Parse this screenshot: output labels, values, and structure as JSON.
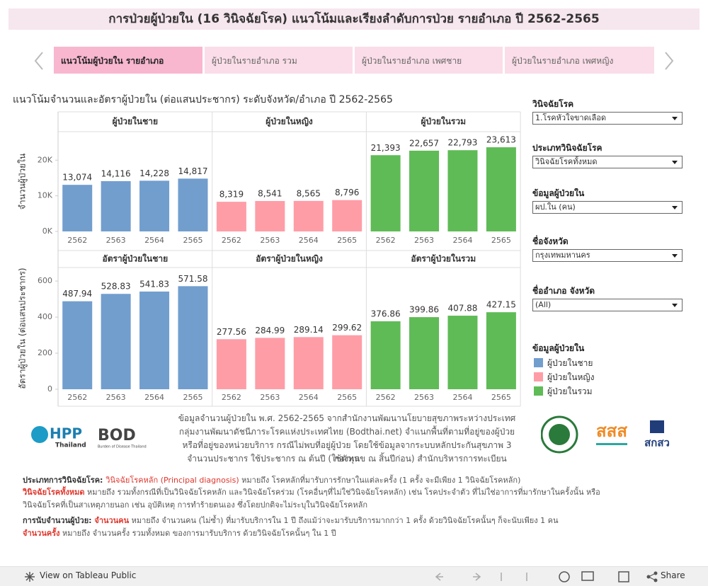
{
  "header": {
    "title": "การป่วยผู้ป่วยใน (16 วินิจฉัยโรค) แนวโน้มและเรียงลำดับการป่วย รายอำเภอ ปี 2562-2565"
  },
  "tabs": [
    "แนวโน้มผู้ป่วยใน รายอำเภอ",
    "ผู้ป่วยในรายอำเภอ รวม",
    "ผู้ป่วยในรายอำเภอ เพศชาย",
    "ผู้ป่วยในรายอำเภอ เพศหญิง"
  ],
  "subtitle": "แนวโน้มจำนวนและอัตราผู้ป่วยใน (ต่อแสนประชากร) ระดับจังหวัด/อำเภอ ปี 2562-2565",
  "chart_data": [
    {
      "type": "bar",
      "y_label": "จำนวนผู้ป่วยใน",
      "categories": [
        "2562",
        "2563",
        "2564",
        "2565"
      ],
      "ylim": [
        0,
        28000
      ],
      "yticks": [
        {
          "value": 0,
          "label": "0K"
        },
        {
          "value": 10000,
          "label": "10K"
        },
        {
          "value": 20000,
          "label": "20K"
        }
      ],
      "series": [
        {
          "name": "ผู้ป่วยในชาย",
          "color": "#729ece",
          "values": [
            13074,
            14116,
            14228,
            14817
          ],
          "value_labels": [
            "13,074",
            "14,116",
            "14,228",
            "14,817"
          ]
        },
        {
          "name": "ผู้ป่วยในหญิง",
          "color": "#ff9da7",
          "values": [
            8319,
            8541,
            8565,
            8796
          ],
          "value_labels": [
            "8,319",
            "8,541",
            "8,565",
            "8,796"
          ]
        },
        {
          "name": "ผู้ป่วยในรวม",
          "color": "#5fbb56",
          "values": [
            21393,
            22657,
            22793,
            23613
          ],
          "value_labels": [
            "21,393",
            "22,657",
            "22,793",
            "23,613"
          ]
        }
      ]
    },
    {
      "type": "bar",
      "y_label": "อัตราผู้ป่วยใน (ต่อแสนประชากร)",
      "categories": [
        "2562",
        "2563",
        "2564",
        "2565"
      ],
      "ylim": [
        0,
        675
      ],
      "yticks": [
        0,
        200,
        400,
        600
      ],
      "series": [
        {
          "name": "อัตราผู้ป่วยในชาย",
          "color": "#729ece",
          "values": [
            487.94,
            528.83,
            541.83,
            571.58
          ]
        },
        {
          "name": "อัตราผู้ป่วยในหญิง",
          "color": "#ff9da7",
          "values": [
            277.56,
            284.99,
            289.14,
            299.62
          ]
        },
        {
          "name": "อัตราผู้ป่วยในรวม",
          "color": "#5fbb56",
          "values": [
            376.86,
            399.86,
            407.88,
            427.15
          ]
        }
      ]
    }
  ],
  "filters": [
    {
      "label": "วินิจฉัยโรค",
      "value": "1.โรคหัวใจขาดเลือด"
    },
    {
      "label": "ประเภทวินิจฉัยโรค",
      "value": "วินิจฉัยโรคทั้งหมด"
    },
    {
      "label": "ข้อมูลผู้ป่วยใน",
      "value": "ผป.ใน (คน)"
    },
    {
      "label": "ชื่อจังหวัด",
      "value": "กรุงเทพมหานคร"
    },
    {
      "label": "ชื่ออำเภอ จังหวัด",
      "value": "(All)"
    }
  ],
  "legend": {
    "title": "ข้อมูลผู้ป่วยใน"
  },
  "source": [
    "ข้อมูลจำนวนผู้ป่วยใน พ.ศ. 2562-2565 จากสำนักงานพัฒนานโยบายสุขภาพระหว่างประเทศ",
    "กลุ่มงานพัฒนาดัชนีภาระโรคแห่งประเทศไทย (Bodthai.net) จำแนกพื้นที่ตามที่อยู่ของผู้ป่วย",
    "หรือที่อยู่ของหน่วยบริการ กรณีไม่พบที่อยู่ผู้ป่วย โดยใช้ข้อมูลจากระบบหลักประกันสุขภาพ 3 กองทุน",
    "จำนวนประชากร ใช้ประชากร ณ ต้นปี (ใช้ตัวเลข ณ สิ้นปีก่อน) สำนักบริหารการทะเบียน"
  ],
  "logos": {
    "ihpp": "HPP",
    "ihpp_sub": "Thailand",
    "bod": "BOD",
    "bod_sub": "Burden of Disease Thailand",
    "thaihealth": "สสส",
    "tsri": "สกสว"
  },
  "notes": [
    [
      {
        "text": "ประเภทการวินิจฉัยโรค: ",
        "style": "label"
      },
      {
        "text": "วินิจฉัยโรคหลัก (Principal diagnosis)",
        "style": "red"
      },
      {
        "text": " หมายถึง โรคหลักที่มารับการรักษาในแต่ละครั้ง (1 ครั้ง จะมีเพียง 1 วินิจฉัยโรคหลัก)"
      }
    ],
    [
      {
        "text": "วินิจฉัยโรคทั้งหมด",
        "style": "red-bold"
      },
      {
        "text": " หมายถึง รวมทั้งกรณีที่เป็นวินิจฉัยโรคหลัก และวินิจฉัยโรคร่วม (โรคอื่นๆที่ไม่ใช่วินิจฉัยโรคหลัก) เช่น โรคประจำตัว ที่ไม่ใช่อาการที่มารักษาในครั้งนั้น หรือ"
      }
    ],
    [
      {
        "text": "วินิจฉัยโรคที่เป็นสาเหตุภายนอก เช่น อุบัติเหตุ การทำร้ายตนเอง ซึ่งโดยปกติจะไม่ระบุในวินิจฉัยโรคหลัก"
      }
    ],
    [
      {
        "text": "การนับจำนวนผู้ป่วย: ",
        "style": "label"
      },
      {
        "text": "จำนวนคน",
        "style": "red-bold"
      },
      {
        "text": " หมายถึง จำนวนคน (ไม่ซ้ำ) ที่มารับบริการใน 1 ปี ถึงแม้ว่าจะมารับบริการมากกว่า 1 ครั้ง ด้วยวินิจฉัยโรคนั้นๆ ก็จะนับเพียง 1 คน"
      }
    ],
    [
      {
        "text": "จำนวนครั้ง",
        "style": "red-bold"
      },
      {
        "text": " หมายถึง จำนวนครั้ง รวมทั้งหมด ของการมารับบริการ ด้วยวินิจฉัยโรคนั้นๆ ใน 1 ปี"
      }
    ]
  ],
  "toolbar": {
    "view": "View on Tableau Public",
    "share": "Share"
  }
}
